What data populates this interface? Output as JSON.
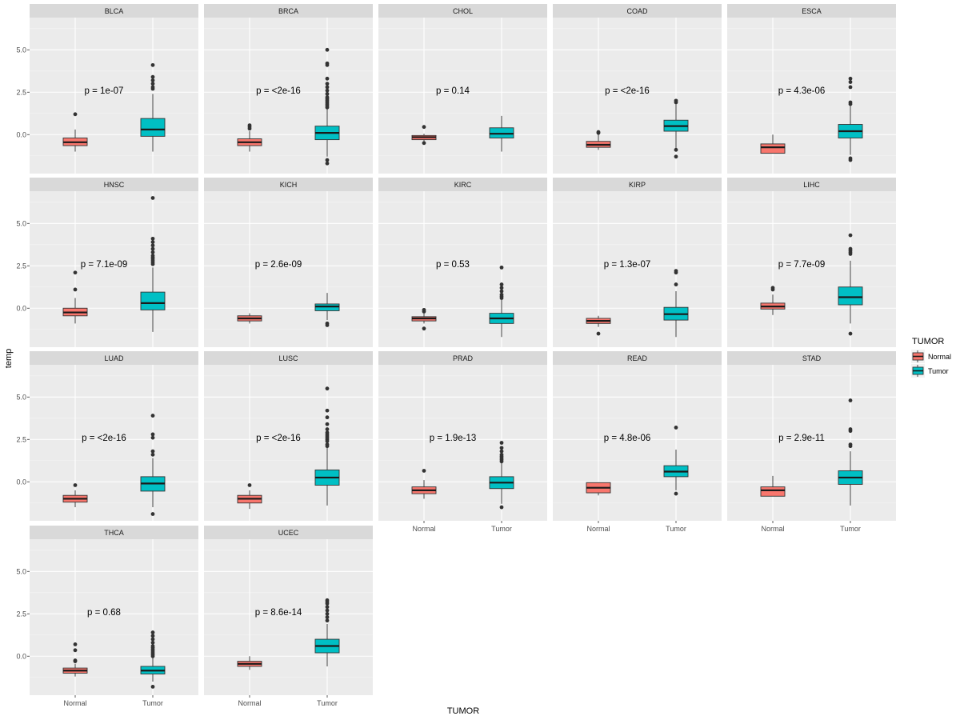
{
  "chart_data": {
    "type": "boxplot",
    "xlabel": "TUMOR",
    "ylabel": "temp",
    "categories": [
      "Normal",
      "Tumor"
    ],
    "yticks": [
      0.0,
      2.5,
      5.0
    ],
    "ytick_labels": [
      "0.0",
      "2.5",
      "5.0"
    ],
    "ylim": [
      -2.3,
      6.9
    ],
    "legend": {
      "title": "TUMOR",
      "position": "right",
      "entries": [
        {
          "label": "Normal",
          "color": "#F8766D"
        },
        {
          "label": "Tumor",
          "color": "#00BFC4"
        }
      ]
    },
    "pvalue_y": 2.6,
    "panels": [
      {
        "name": "BLCA",
        "pvalue": "p = 1e-07",
        "normal": {
          "q1": -0.65,
          "median": -0.45,
          "q3": -0.2,
          "min": -1.0,
          "max": 0.3,
          "outliers": [
            1.2
          ]
        },
        "tumor": {
          "q1": -0.1,
          "median": 0.3,
          "q3": 0.95,
          "min": -1.0,
          "max": 2.4,
          "outliers": [
            2.7,
            2.8,
            3.0,
            3.2,
            3.4,
            4.1
          ]
        }
      },
      {
        "name": "BRCA",
        "pvalue": "p = <2e-16",
        "normal": {
          "q1": -0.65,
          "median": -0.45,
          "q3": -0.25,
          "min": -1.0,
          "max": 0.2,
          "outliers": [
            0.35,
            0.45,
            0.55
          ]
        },
        "tumor": {
          "q1": -0.3,
          "median": 0.1,
          "q3": 0.5,
          "min": -1.3,
          "max": 1.5,
          "outliers": [
            1.6,
            1.7,
            1.8,
            1.9,
            2.0,
            2.1,
            2.2,
            2.4,
            2.6,
            2.8,
            3.0,
            3.3,
            4.1,
            4.2,
            5.0,
            -1.5,
            -1.7
          ]
        }
      },
      {
        "name": "CHOL",
        "pvalue": "p = 0.14",
        "normal": {
          "q1": -0.3,
          "median": -0.15,
          "q3": -0.05,
          "min": -0.45,
          "max": 0.05,
          "outliers": [
            0.45,
            -0.5
          ]
        },
        "tumor": {
          "q1": -0.2,
          "median": 0.05,
          "q3": 0.4,
          "min": -1.0,
          "max": 1.1,
          "outliers": []
        }
      },
      {
        "name": "COAD",
        "pvalue": "p = <2e-16",
        "normal": {
          "q1": -0.75,
          "median": -0.6,
          "q3": -0.4,
          "min": -0.9,
          "max": 0.05,
          "outliers": [
            0.1,
            0.15
          ]
        },
        "tumor": {
          "q1": 0.2,
          "median": 0.5,
          "q3": 0.85,
          "min": -0.8,
          "max": 1.8,
          "outliers": [
            1.9,
            2.0,
            -0.9,
            -1.3
          ]
        }
      },
      {
        "name": "ESCA",
        "pvalue": "p = 4.3e-06",
        "normal": {
          "q1": -1.1,
          "median": -0.75,
          "q3": -0.55,
          "min": -1.1,
          "max": 0.0,
          "outliers": []
        },
        "tumor": {
          "q1": -0.2,
          "median": 0.2,
          "q3": 0.6,
          "min": -1.2,
          "max": 1.7,
          "outliers": [
            1.8,
            1.9,
            2.8,
            3.1,
            3.3,
            -1.4,
            -1.5
          ]
        }
      },
      {
        "name": "HNSC",
        "pvalue": "p = 7.1e-09",
        "normal": {
          "q1": -0.45,
          "median": -0.25,
          "q3": 0.0,
          "min": -0.9,
          "max": 0.6,
          "outliers": [
            1.1,
            2.1
          ]
        },
        "tumor": {
          "q1": -0.1,
          "median": 0.3,
          "q3": 0.95,
          "min": -1.4,
          "max": 2.4,
          "outliers": [
            2.6,
            2.7,
            2.8,
            2.9,
            3.0,
            3.1,
            3.3,
            3.5,
            3.7,
            3.9,
            4.1,
            6.5
          ]
        }
      },
      {
        "name": "KICH",
        "pvalue": "p = 2.6e-09",
        "normal": {
          "q1": -0.75,
          "median": -0.6,
          "q3": -0.45,
          "min": -0.9,
          "max": -0.3,
          "outliers": []
        },
        "tumor": {
          "q1": -0.15,
          "median": 0.1,
          "q3": 0.25,
          "min": -0.7,
          "max": 0.9,
          "outliers": [
            -0.9,
            -1.0
          ]
        }
      },
      {
        "name": "KIRC",
        "pvalue": "p = 0.53",
        "normal": {
          "q1": -0.75,
          "median": -0.6,
          "q3": -0.5,
          "min": -0.9,
          "max": -0.3,
          "outliers": [
            -0.1,
            -0.2,
            -1.2
          ]
        },
        "tumor": {
          "q1": -0.9,
          "median": -0.6,
          "q3": -0.3,
          "min": -1.7,
          "max": 0.5,
          "outliers": [
            0.6,
            0.7,
            0.8,
            1.0,
            1.2,
            1.4,
            2.4
          ]
        }
      },
      {
        "name": "KIRP",
        "pvalue": "p = 1.3e-07",
        "normal": {
          "q1": -0.9,
          "median": -0.75,
          "q3": -0.6,
          "min": -1.1,
          "max": -0.45,
          "outliers": [
            -1.5
          ]
        },
        "tumor": {
          "q1": -0.7,
          "median": -0.35,
          "q3": 0.05,
          "min": -1.7,
          "max": 1.0,
          "outliers": [
            1.4,
            2.1,
            2.2
          ]
        }
      },
      {
        "name": "LIHC",
        "pvalue": "p = 7.7e-09",
        "normal": {
          "q1": -0.05,
          "median": 0.1,
          "q3": 0.3,
          "min": -0.4,
          "max": 0.8,
          "outliers": [
            1.1,
            1.2
          ]
        },
        "tumor": {
          "q1": 0.2,
          "median": 0.65,
          "q3": 1.25,
          "min": -0.9,
          "max": 2.8,
          "outliers": [
            3.2,
            3.3,
            3.4,
            3.5,
            4.3,
            -1.5
          ]
        }
      },
      {
        "name": "LUAD",
        "pvalue": "p = <2e-16",
        "normal": {
          "q1": -1.2,
          "median": -1.0,
          "q3": -0.8,
          "min": -1.5,
          "max": -0.5,
          "outliers": [
            -0.2
          ]
        },
        "tumor": {
          "q1": -0.55,
          "median": -0.1,
          "q3": 0.3,
          "min": -1.5,
          "max": 1.4,
          "outliers": [
            1.6,
            1.8,
            2.6,
            2.8,
            3.9,
            -1.9
          ]
        }
      },
      {
        "name": "LUSC",
        "pvalue": "p = <2e-16",
        "normal": {
          "q1": -1.25,
          "median": -1.0,
          "q3": -0.8,
          "min": -1.6,
          "max": -0.5,
          "outliers": [
            -0.2
          ]
        },
        "tumor": {
          "q1": -0.2,
          "median": 0.25,
          "q3": 0.7,
          "min": -1.4,
          "max": 2.0,
          "outliers": [
            2.1,
            2.2,
            2.4,
            2.5,
            2.6,
            2.7,
            2.8,
            2.9,
            3.1,
            3.4,
            3.8,
            4.2,
            5.5
          ]
        }
      },
      {
        "name": "PRAD",
        "pvalue": "p = 1.9e-13",
        "normal": {
          "q1": -0.7,
          "median": -0.5,
          "q3": -0.3,
          "min": -1.0,
          "max": 0.1,
          "outliers": [
            0.65
          ]
        },
        "tumor": {
          "q1": -0.4,
          "median": -0.05,
          "q3": 0.3,
          "min": -1.3,
          "max": 1.1,
          "outliers": [
            1.2,
            1.3,
            1.4,
            1.5,
            1.6,
            1.8,
            2.0,
            2.3,
            -1.5
          ]
        }
      },
      {
        "name": "READ",
        "pvalue": "p = 4.8e-06",
        "normal": {
          "q1": -0.65,
          "median": -0.35,
          "q3": -0.05,
          "min": -0.8,
          "max": -0.05,
          "outliers": []
        },
        "tumor": {
          "q1": 0.3,
          "median": 0.6,
          "q3": 0.95,
          "min": -0.5,
          "max": 1.9,
          "outliers": [
            3.2,
            -0.7
          ]
        }
      },
      {
        "name": "STAD",
        "pvalue": "p = 2.9e-11",
        "normal": {
          "q1": -0.85,
          "median": -0.5,
          "q3": -0.3,
          "min": -0.85,
          "max": 0.35,
          "outliers": []
        },
        "tumor": {
          "q1": -0.15,
          "median": 0.25,
          "q3": 0.65,
          "min": -1.4,
          "max": 1.8,
          "outliers": [
            2.1,
            2.2,
            3.0,
            3.1,
            4.8
          ]
        }
      },
      {
        "name": "THCA",
        "pvalue": "p = 0.68",
        "normal": {
          "q1": -1.0,
          "median": -0.85,
          "q3": -0.7,
          "min": -1.2,
          "max": -0.45,
          "outliers": [
            -0.3,
            -0.25,
            0.35,
            0.7
          ]
        },
        "tumor": {
          "q1": -1.05,
          "median": -0.85,
          "q3": -0.6,
          "min": -1.5,
          "max": -0.1,
          "outliers": [
            0.0,
            0.1,
            0.2,
            0.3,
            0.4,
            0.5,
            0.6,
            0.8,
            1.0,
            1.2,
            1.4,
            -1.8
          ]
        }
      },
      {
        "name": "UCEC",
        "pvalue": "p = 8.6e-14",
        "normal": {
          "q1": -0.6,
          "median": -0.45,
          "q3": -0.3,
          "min": -0.8,
          "max": 0.0,
          "outliers": []
        },
        "tumor": {
          "q1": 0.2,
          "median": 0.6,
          "q3": 1.0,
          "min": -0.6,
          "max": 1.9,
          "outliers": [
            2.1,
            2.3,
            2.5,
            2.7,
            2.9,
            3.1,
            3.2,
            3.3
          ]
        }
      }
    ]
  }
}
